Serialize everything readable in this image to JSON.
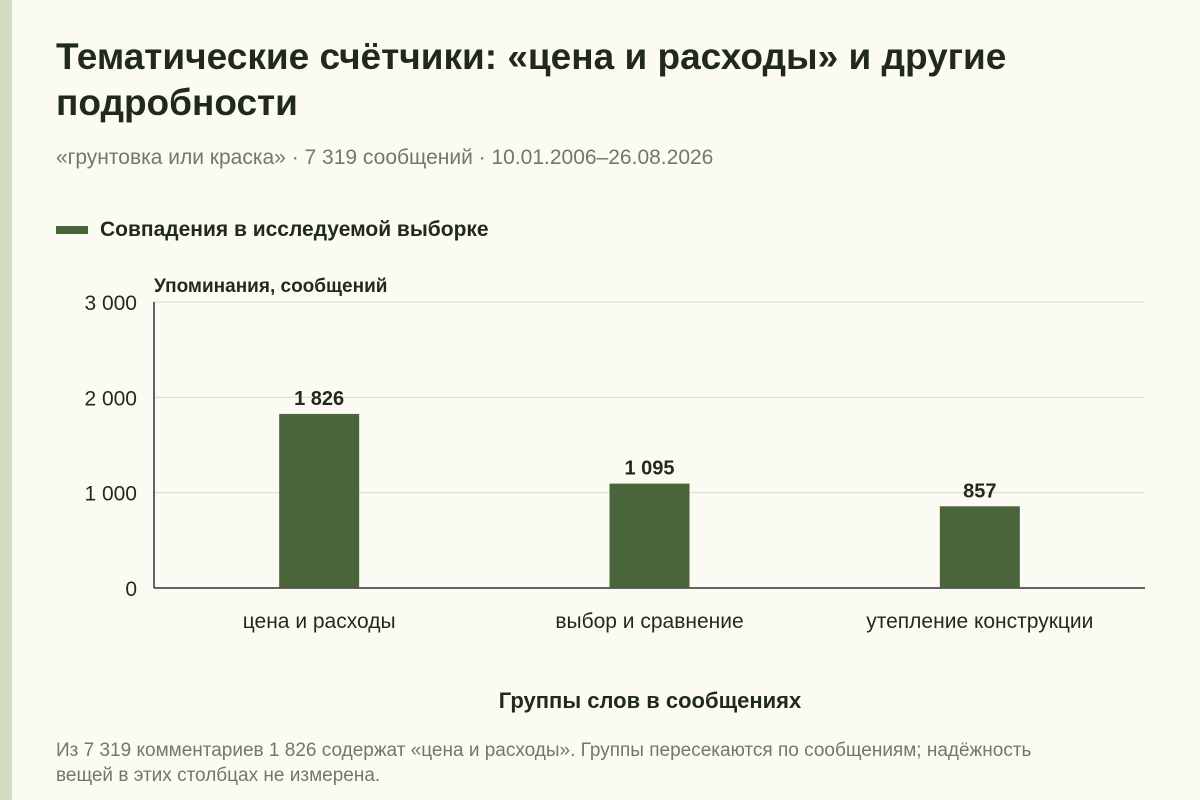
{
  "chart_data": {
    "type": "bar",
    "title": "Тематические счётчики: «цена и расходы» и другие подробности",
    "subtitle": "«грунтовка или краска» · 7 319 сообщений · 10.01.2006–26.08.2026",
    "categories": [
      "цена и расходы",
      "выбор и сравнение",
      "утепление конструкции"
    ],
    "series": [
      {
        "name": "Совпадения в исследуемой выборке",
        "values": [
          1826,
          1095,
          857
        ],
        "value_labels": [
          "1 826",
          "1 095",
          "857"
        ],
        "color": "#4b653a"
      }
    ],
    "ylabel": "Упоминания, сообщений",
    "xlabel": "Группы слов в сообщениях",
    "ylim": [
      0,
      3000
    ],
    "yticks": [
      0,
      1000,
      2000,
      3000
    ],
    "ytick_labels": [
      "0",
      "1 000",
      "2 000",
      "3 000"
    ],
    "grid": true,
    "legend_position": "top-left"
  },
  "footnote": "Из 7 319 комментариев 1 826 содержат «цена и расходы». Группы пересекаются по сообщениям; надёжность вещей в этих столбцах не измерена.",
  "colors": {
    "bar": "#4b653a",
    "background": "#fcfbf3",
    "accent_strip": "#d3dcc2",
    "grid": "#d9d9d0",
    "text": "#1f2a1c",
    "muted_text": "#6d7a66"
  }
}
